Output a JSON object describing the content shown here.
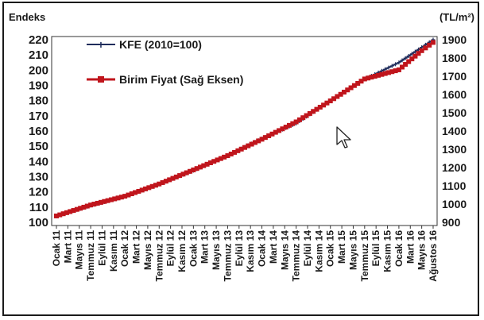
{
  "chart_data": {
    "type": "line",
    "y_left_label": "Endeks",
    "y_right_label": "(TL/m²)",
    "y_left_range": [
      100,
      220
    ],
    "y_left_ticks": [
      "220",
      "210",
      "200",
      "190",
      "180",
      "170",
      "160",
      "150",
      "140",
      "130",
      "120",
      "110",
      "100"
    ],
    "y_right_range": [
      900,
      1900
    ],
    "y_right_ticks": [
      "1900",
      "1800",
      "1700",
      "1600",
      "1500",
      "1400",
      "1300",
      "1200",
      "1100",
      "1000",
      "900"
    ],
    "x_tick_labels": [
      "Ocak 11",
      "Mart 11",
      "Mayıs 11",
      "Temmuz 11",
      "Eylül 11",
      "Kasım 11",
      "Ocak 12",
      "Mart 12",
      "Mayıs 12",
      "Temmuz 12",
      "Eylül 12",
      "Kasım 12",
      "Ocak 13",
      "Mart 13",
      "Mayıs 13",
      "Temmuz 13",
      "Eylül 13",
      "Kasım 13",
      "Ocak 14",
      "Mart 14",
      "Mayıs 14",
      "Temmuz 14",
      "Eylül 14",
      "Kasım 14",
      "Ocak 15",
      "Mart 15",
      "Mayıs 15",
      "Temmuz 15",
      "Eylül 15",
      "Kasım 15",
      "Ocak 16",
      "Mart 16",
      "Mayıs 16",
      "Ağustos 16"
    ],
    "grid": false,
    "legend_position": "top-left",
    "series": [
      {
        "name": "KFE (2010=100)",
        "axis": "left",
        "color": "#1f2d5c",
        "marker": "plus",
        "x": [
          "Ocak 11",
          "Temmuz 11",
          "Ocak 12",
          "Temmuz 12",
          "Ocak 13",
          "Temmuz 13",
          "Ocak 14",
          "Temmuz 14",
          "Ocak 15",
          "Temmuz 15",
          "Ocak 16",
          "Mayıs 16",
          "Ağustos 16"
        ],
        "values": [
          104,
          111,
          117,
          125,
          134,
          144,
          155,
          165,
          180,
          194,
          205,
          215,
          220
        ]
      },
      {
        "name": "Birim Fiyat (Sağ Eksen)",
        "axis": "right",
        "color": "#c0151c",
        "marker": "square",
        "x": [
          "Ocak 11",
          "Temmuz 11",
          "Ocak 12",
          "Temmuz 12",
          "Ocak 13",
          "Temmuz 13",
          "Ocak 14",
          "Temmuz 14",
          "Ocak 15",
          "Temmuz 15",
          "Ocak 16",
          "Mayıs 16",
          "Ağustos 16"
        ],
        "values": [
          935,
          995,
          1043,
          1110,
          1187,
          1265,
          1355,
          1450,
          1565,
          1685,
          1735,
          1840,
          1885
        ]
      }
    ]
  }
}
